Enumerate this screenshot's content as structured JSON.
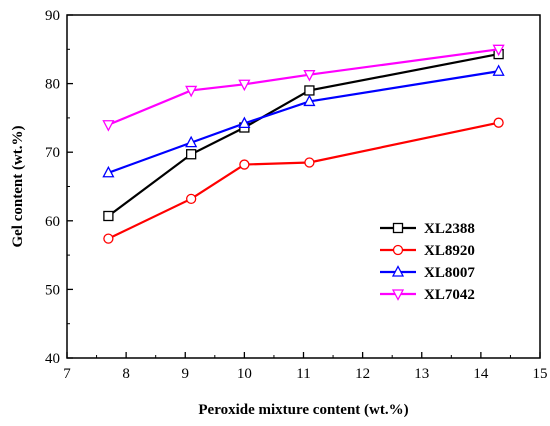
{
  "chart_data": {
    "type": "line",
    "title": "",
    "xlabel": "Peroxide mixture content (wt.%)",
    "ylabel": "Gel content (wt.%)",
    "xlim": [
      7,
      15
    ],
    "ylim": [
      40,
      90
    ],
    "xticks": [
      7,
      8,
      9,
      10,
      11,
      12,
      13,
      14,
      15
    ],
    "yticks": [
      40,
      50,
      60,
      70,
      80,
      90
    ],
    "grid": false,
    "legend_position": "center-right",
    "series": [
      {
        "name": "XL2388",
        "color": "#000000",
        "marker": "square",
        "x": [
          7.7,
          9.1,
          10.0,
          11.1,
          14.3
        ],
        "y": [
          60.7,
          69.7,
          73.6,
          79.0,
          84.3
        ]
      },
      {
        "name": "XL8920",
        "color": "#ff0000",
        "marker": "circle",
        "x": [
          7.7,
          9.1,
          10.0,
          11.1,
          14.3
        ],
        "y": [
          57.4,
          63.2,
          68.2,
          68.5,
          74.3
        ]
      },
      {
        "name": "XL8007",
        "color": "#0000ff",
        "marker": "triangle-up",
        "x": [
          7.7,
          9.1,
          10.0,
          11.1,
          14.3
        ],
        "y": [
          67.0,
          71.4,
          74.2,
          77.4,
          81.8
        ]
      },
      {
        "name": "XL7042",
        "color": "#ff00ff",
        "marker": "triangle-down",
        "x": [
          7.7,
          9.1,
          10.0,
          11.1,
          14.3
        ],
        "y": [
          74.0,
          79.0,
          79.9,
          81.3,
          85.0
        ]
      }
    ]
  }
}
